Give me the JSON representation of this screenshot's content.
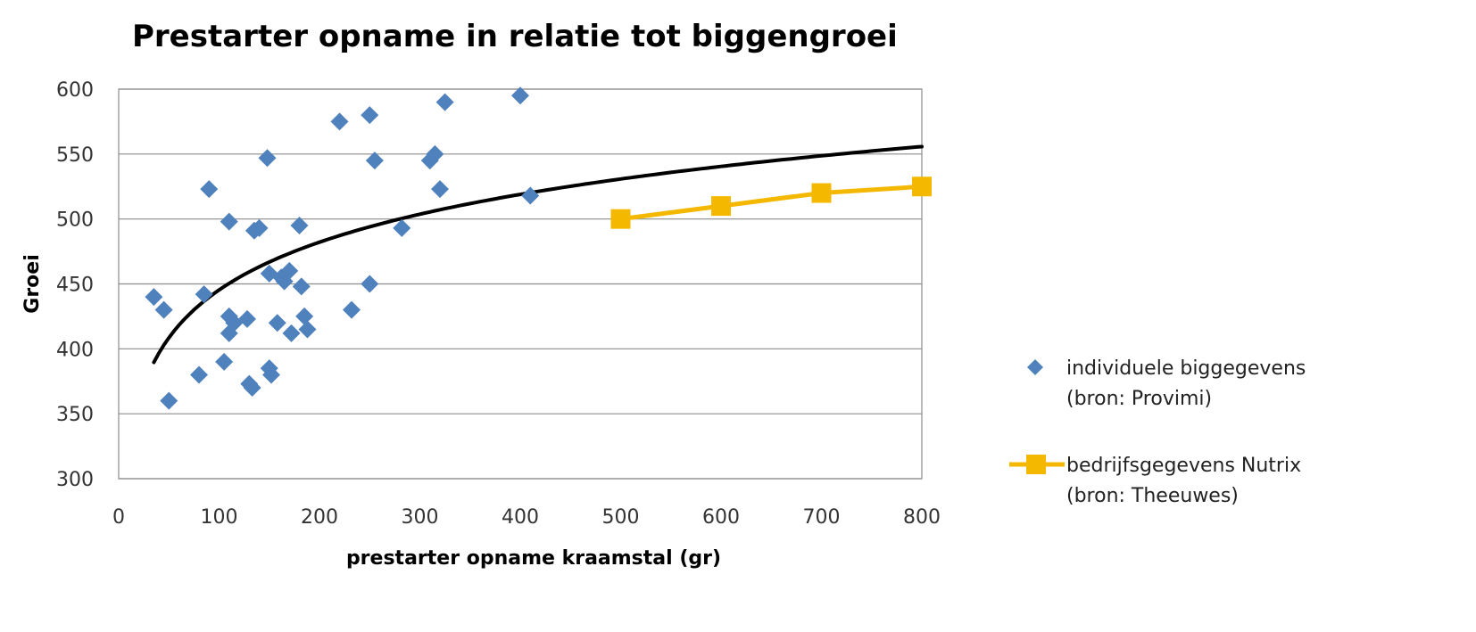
{
  "chart_data": {
    "type": "scatter",
    "title": "Prestarter opname in relatie tot biggengroei",
    "xlabel": "prestarter opname kraamstal (gr)",
    "ylabel": "Groei",
    "xlim": [
      0,
      800
    ],
    "ylim": [
      300,
      600
    ],
    "x_ticks": [
      0,
      100,
      200,
      300,
      400,
      500,
      600,
      700,
      800
    ],
    "y_ticks": [
      300,
      350,
      400,
      450,
      500,
      550,
      600
    ],
    "grid": "horizontal",
    "legend_position": "right",
    "series": [
      {
        "name_lines": [
          "individuele biggegevens",
          "(bron: Provimi)"
        ],
        "kind": "scatter",
        "marker": "diamond",
        "color": "#4f81bd",
        "points": [
          [
            35,
            440
          ],
          [
            45,
            430
          ],
          [
            50,
            360
          ],
          [
            80,
            380
          ],
          [
            85,
            442
          ],
          [
            90,
            523
          ],
          [
            105,
            390
          ],
          [
            110,
            498
          ],
          [
            110,
            425
          ],
          [
            110,
            412
          ],
          [
            115,
            420
          ],
          [
            128,
            423
          ],
          [
            130,
            373
          ],
          [
            133,
            370
          ],
          [
            135,
            491
          ],
          [
            140,
            493
          ],
          [
            148,
            547
          ],
          [
            150,
            458
          ],
          [
            150,
            385
          ],
          [
            152,
            380
          ],
          [
            158,
            420
          ],
          [
            162,
            455
          ],
          [
            165,
            452
          ],
          [
            170,
            460
          ],
          [
            172,
            412
          ],
          [
            180,
            495
          ],
          [
            182,
            448
          ],
          [
            185,
            425
          ],
          [
            188,
            415
          ],
          [
            220,
            575
          ],
          [
            232,
            430
          ],
          [
            250,
            580
          ],
          [
            250,
            450
          ],
          [
            255,
            545
          ],
          [
            282,
            493
          ],
          [
            310,
            545
          ],
          [
            315,
            550
          ],
          [
            320,
            523
          ],
          [
            325,
            590
          ],
          [
            400,
            595
          ],
          [
            410,
            518
          ]
        ]
      },
      {
        "name_lines": [
          "bedrijfsgegevens Nutrix",
          "(bron: Theeuwes)"
        ],
        "kind": "line",
        "marker": "square",
        "color": "#f5b800",
        "points": [
          [
            500,
            500
          ],
          [
            600,
            510
          ],
          [
            700,
            520
          ],
          [
            800,
            525
          ]
        ]
      }
    ],
    "trendline": {
      "type": "logarithmic",
      "color": "#000000",
      "points": [
        [
          35,
          375
        ],
        [
          50,
          402
        ],
        [
          75,
          431
        ],
        [
          100,
          451
        ],
        [
          150,
          478
        ],
        [
          200,
          497
        ],
        [
          250,
          511
        ],
        [
          300,
          503
        ],
        [
          350,
          511
        ],
        [
          400,
          517
        ],
        [
          500,
          528
        ],
        [
          600,
          538
        ],
        [
          700,
          547
        ],
        [
          800,
          555
        ]
      ]
    }
  }
}
